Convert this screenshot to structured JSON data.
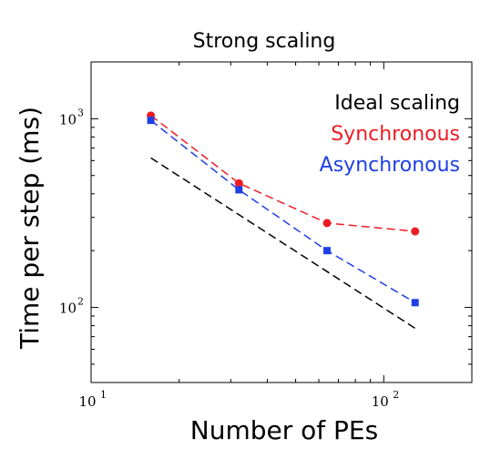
{
  "chart_data": {
    "type": "line",
    "title": "Strong scaling",
    "xlabel": "Number of PEs",
    "ylabel": "Time per step (ms)",
    "xscale": "log",
    "yscale": "log",
    "xlim": [
      10,
      200
    ],
    "ylim": [
      40,
      2000
    ],
    "x_ticks": [
      {
        "base": "10",
        "exp": "1",
        "value": 10
      },
      {
        "base": "10",
        "exp": "2",
        "value": 100
      }
    ],
    "y_ticks": [
      {
        "base": "10",
        "exp": "2",
        "value": 100
      },
      {
        "base": "10",
        "exp": "3",
        "value": 1000
      }
    ],
    "grid": false,
    "legend_position": "top-right",
    "series": [
      {
        "name": "Ideal scaling",
        "color": "#000000",
        "style": "dashed",
        "marker": "none",
        "x": [
          16,
          128
        ],
        "y": [
          620,
          77.5
        ]
      },
      {
        "name": "Synchronous",
        "color": "#ee1c25",
        "style": "dashed",
        "marker": "circle",
        "x": [
          16,
          32,
          64,
          128
        ],
        "y": [
          1040,
          455,
          280,
          253
        ]
      },
      {
        "name": "Asynchronous",
        "color": "#1f3fe8",
        "style": "dashed",
        "marker": "square",
        "x": [
          16,
          32,
          64,
          128
        ],
        "y": [
          980,
          420,
          200,
          106
        ]
      }
    ]
  }
}
